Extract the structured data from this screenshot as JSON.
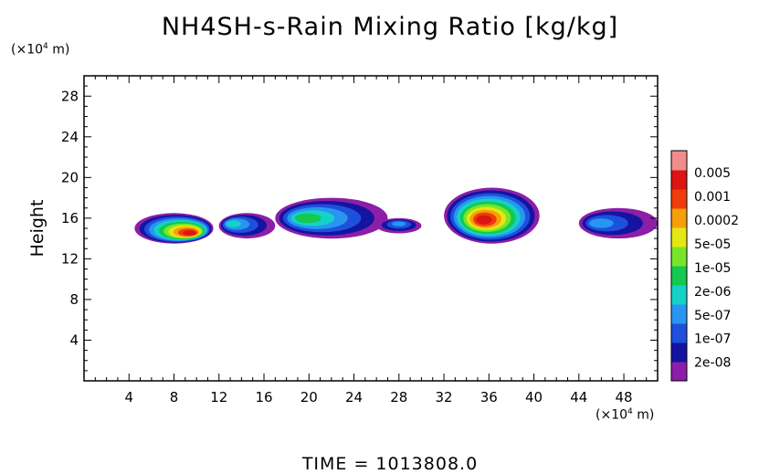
{
  "chart_data": {
    "type": "heatmap",
    "title": "NH4SH-s-Rain Mixing Ratio [kg/kg]",
    "ylabel": "Height",
    "x_unit": {
      "prefix": "(×10",
      "exp": "4",
      "suffix": " m)"
    },
    "y_unit": {
      "prefix": "(×10",
      "exp": "4",
      "suffix": " m)"
    },
    "xlim": [
      0,
      51
    ],
    "ylim": [
      0,
      30
    ],
    "x_ticks": [
      "4",
      "8",
      "12",
      "16",
      "20",
      "24",
      "28",
      "32",
      "36",
      "40",
      "44",
      "48"
    ],
    "x_tick_values": [
      4,
      8,
      12,
      16,
      20,
      24,
      28,
      32,
      36,
      40,
      44,
      48
    ],
    "y_ticks": [
      "4",
      "8",
      "12",
      "16",
      "20",
      "24",
      "28"
    ],
    "y_tick_values": [
      4,
      8,
      12,
      16,
      20,
      24,
      28
    ],
    "colorbar": {
      "labels": [
        "2e-08",
        "1e-07",
        "5e-07",
        "2e-06",
        "1e-05",
        "5e-05",
        "0.0002",
        "0.001",
        "0.005"
      ],
      "colors": [
        "#8c1ea8",
        "#1414a0",
        "#1e50dc",
        "#2896f0",
        "#14d2c8",
        "#14c850",
        "#78e628",
        "#e6e614",
        "#f5a00a",
        "#f03c0a",
        "#dc1414",
        "#f08c8c"
      ]
    },
    "features": [
      {
        "x": [
          4.5,
          11.5
        ],
        "y": [
          13.5,
          16.5
        ],
        "peak_level": 10,
        "peak_x": 9.5,
        "peak_y": 14.5
      },
      {
        "x": [
          12,
          17
        ],
        "y": [
          14,
          16.5
        ],
        "peak_level": 4,
        "peak_x": 13,
        "peak_y": 15.5
      },
      {
        "x": [
          17,
          27
        ],
        "y": [
          14,
          18
        ],
        "peak_level": 5,
        "peak_x": 19.5,
        "peak_y": 16
      },
      {
        "x": [
          26,
          30
        ],
        "y": [
          14.5,
          16
        ],
        "peak_level": 3,
        "peak_x": 28,
        "peak_y": 15.5
      },
      {
        "x": [
          32,
          40.5
        ],
        "y": [
          13.5,
          19
        ],
        "peak_level": 10,
        "peak_x": 35.5,
        "peak_y": 15.8
      },
      {
        "x": [
          44,
          51
        ],
        "y": [
          14,
          17
        ],
        "peak_level": 3,
        "peak_x": 45.5,
        "peak_y": 15.5
      }
    ]
  },
  "footer": {
    "time_label": "TIME  =  1013808.0"
  }
}
